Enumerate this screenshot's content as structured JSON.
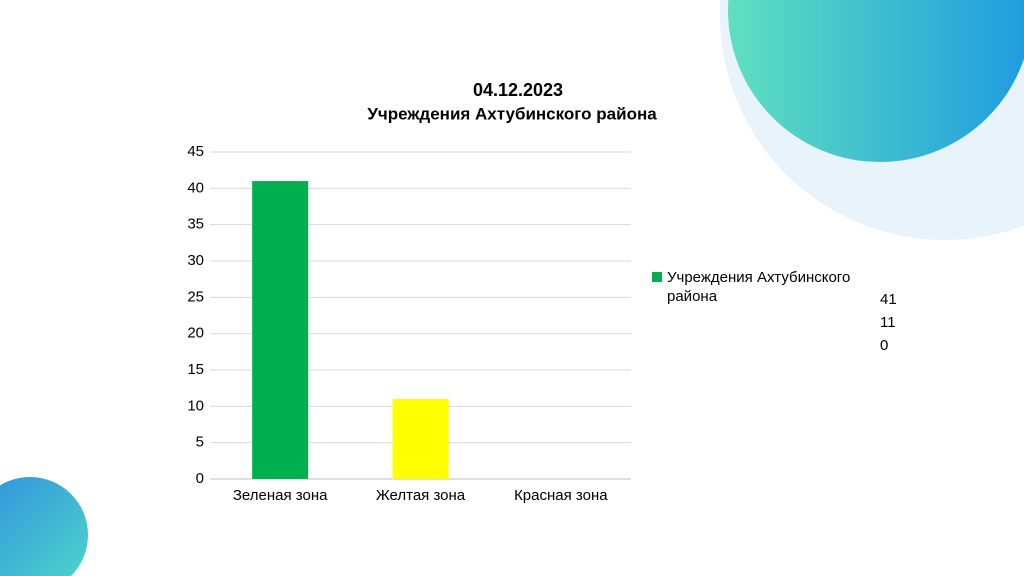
{
  "chart_data": {
    "type": "bar",
    "title": "04.12.2023",
    "subtitle": "Учреждения Ахтубинского района",
    "categories": [
      "Зеленая зона",
      "Желтая зона",
      "Красная зона"
    ],
    "series": [
      {
        "name": "Учреждения Ахтубинского района",
        "color": "#00b050",
        "point_colors": [
          "#00b050",
          "#ffff00",
          "#00b050"
        ],
        "values": [
          41,
          11,
          0
        ]
      }
    ],
    "ylim": [
      0,
      45
    ],
    "yticks": [
      0,
      5,
      10,
      15,
      20,
      25,
      30,
      35,
      40,
      45
    ],
    "grid": true
  }
}
